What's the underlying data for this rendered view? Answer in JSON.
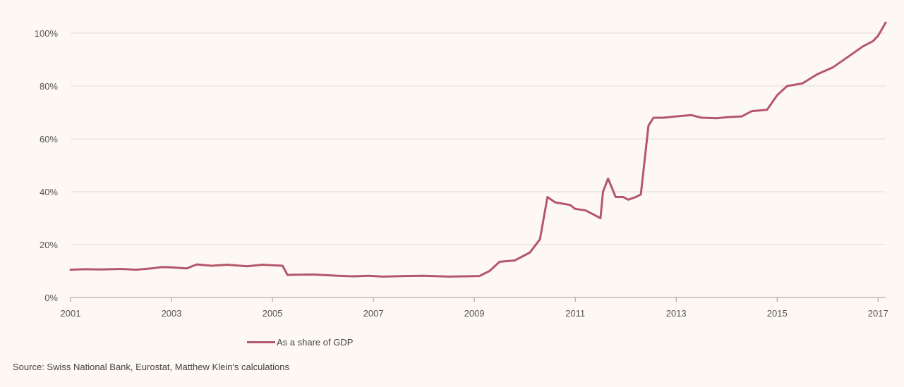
{
  "chart_data": {
    "type": "line",
    "title": "",
    "xlabel": "",
    "ylabel": "",
    "xlim": [
      2001,
      2017.15
    ],
    "ylim": [
      0,
      100
    ],
    "x_ticks": [
      2001,
      2003,
      2005,
      2007,
      2009,
      2011,
      2013,
      2015,
      2017
    ],
    "x_tick_labels": [
      "2001",
      "2003",
      "2005",
      "2007",
      "2009",
      "2011",
      "2013",
      "2015",
      "2017"
    ],
    "y_ticks": [
      0,
      20,
      40,
      60,
      80,
      100
    ],
    "y_tick_labels": [
      "0%",
      "20%",
      "40%",
      "60%",
      "80%",
      "100%"
    ],
    "grid": true,
    "series": [
      {
        "name": "As a share of GDP",
        "color": "#b5576b",
        "x": [
          2001.0,
          2001.3,
          2001.6,
          2002.0,
          2002.3,
          2002.6,
          2002.8,
          2003.0,
          2003.3,
          2003.5,
          2003.8,
          2004.1,
          2004.5,
          2004.8,
          2005.0,
          2005.2,
          2005.3,
          2005.4,
          2005.8,
          2006.3,
          2006.6,
          2006.9,
          2007.2,
          2007.6,
          2008.0,
          2008.5,
          2008.8,
          2009.1,
          2009.3,
          2009.5,
          2009.8,
          2010.0,
          2010.1,
          2010.3,
          2010.45,
          2010.6,
          2010.9,
          2011.0,
          2011.2,
          2011.5,
          2011.55,
          2011.65,
          2011.8,
          2011.95,
          2012.05,
          2012.2,
          2012.3,
          2012.45,
          2012.55,
          2012.75,
          2013.0,
          2013.3,
          2013.5,
          2013.8,
          2014.0,
          2014.3,
          2014.5,
          2014.8,
          2015.0,
          2015.2,
          2015.5,
          2015.8,
          2016.1,
          2016.4,
          2016.7,
          2016.9,
          2017.0,
          2017.15
        ],
        "values": [
          10.5,
          10.7,
          10.6,
          10.8,
          10.5,
          11.0,
          11.5,
          11.4,
          11.0,
          12.5,
          12.0,
          12.4,
          11.8,
          12.4,
          12.2,
          12.0,
          8.5,
          8.6,
          8.7,
          8.2,
          8.0,
          8.2,
          7.9,
          8.1,
          8.2,
          7.9,
          8.0,
          8.1,
          10.0,
          13.5,
          14.0,
          16.0,
          17.0,
          22.0,
          38.0,
          36.0,
          35.0,
          33.5,
          33.0,
          30.0,
          40.0,
          45.0,
          38.0,
          38.0,
          37.0,
          38.0,
          39.0,
          65.0,
          68.0,
          68.0,
          68.5,
          69.0,
          68.0,
          67.8,
          68.2,
          68.5,
          70.5,
          71.0,
          76.5,
          80.0,
          81.0,
          84.5,
          87.0,
          91.0,
          95.0,
          97.0,
          99.0,
          104.0
        ]
      }
    ]
  },
  "legend": {
    "label": "As a share of GDP"
  },
  "source": "Source: Swiss National Bank, Eurostat, Matthew Klein's calculations"
}
